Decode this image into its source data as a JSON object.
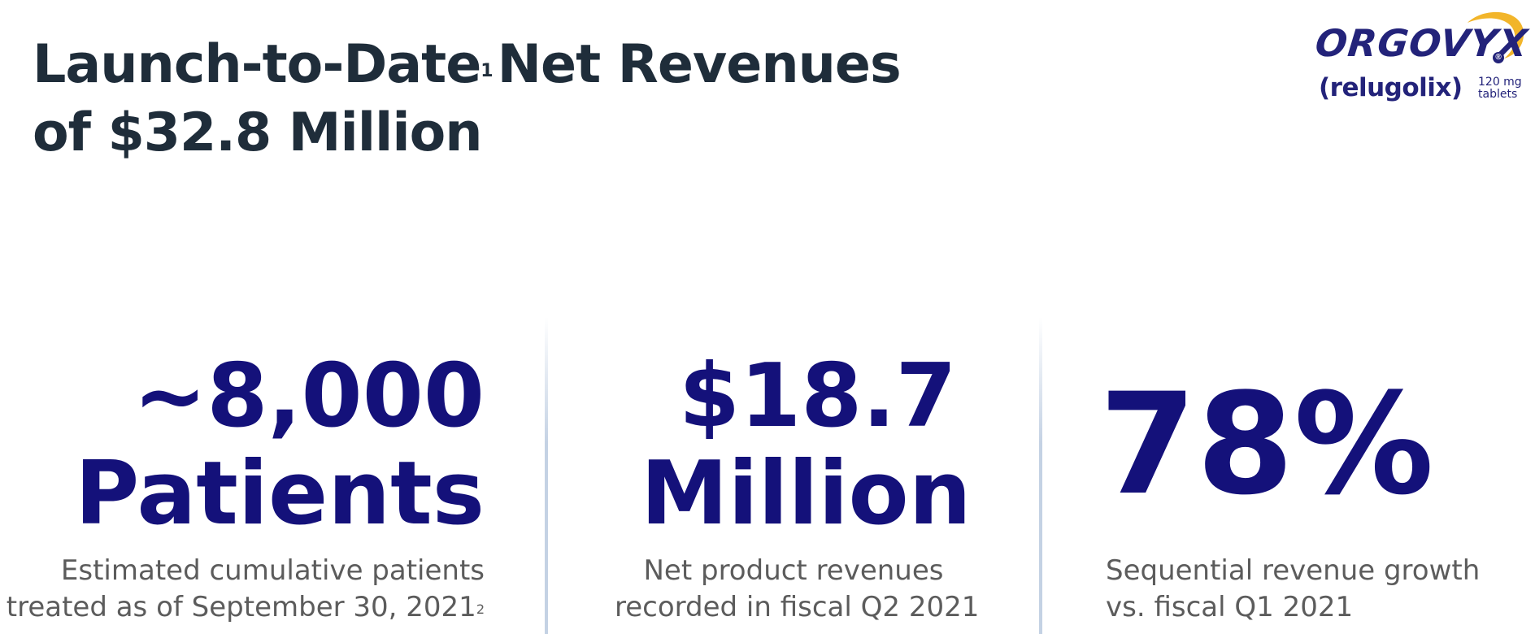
{
  "title": {
    "line1_part1": "Launch-to-Date",
    "line1_footnote": "1",
    "line1_part2": "Net Revenues",
    "line2": "of $32.8 Million"
  },
  "logo": {
    "brand": "ORGOVYX",
    "registered": "®",
    "generic": "(relugolix)",
    "dose_line1": "120 mg",
    "dose_line2": "tablets",
    "accent_color": "#f2b52a",
    "brand_color": "#23237a"
  },
  "stats": [
    {
      "value_line1": "~8,000",
      "value_line2": "Patients",
      "desc_line1": "Estimated cumulative patients",
      "desc_line2": "treated as of  September 30, 2021",
      "desc_footnote": "2"
    },
    {
      "value_line1": "$18.7",
      "value_line2": "Million",
      "desc_line1": "Net product revenues",
      "desc_line2": "recorded in fiscal Q2 2021"
    },
    {
      "value_line1": "78%",
      "desc_line1": "Sequential revenue growth",
      "desc_line2": "vs. fiscal Q1 2021"
    }
  ],
  "colors": {
    "title": "#1f2d3a",
    "stat_value": "#14117a",
    "stat_desc": "#5c5c5c"
  }
}
